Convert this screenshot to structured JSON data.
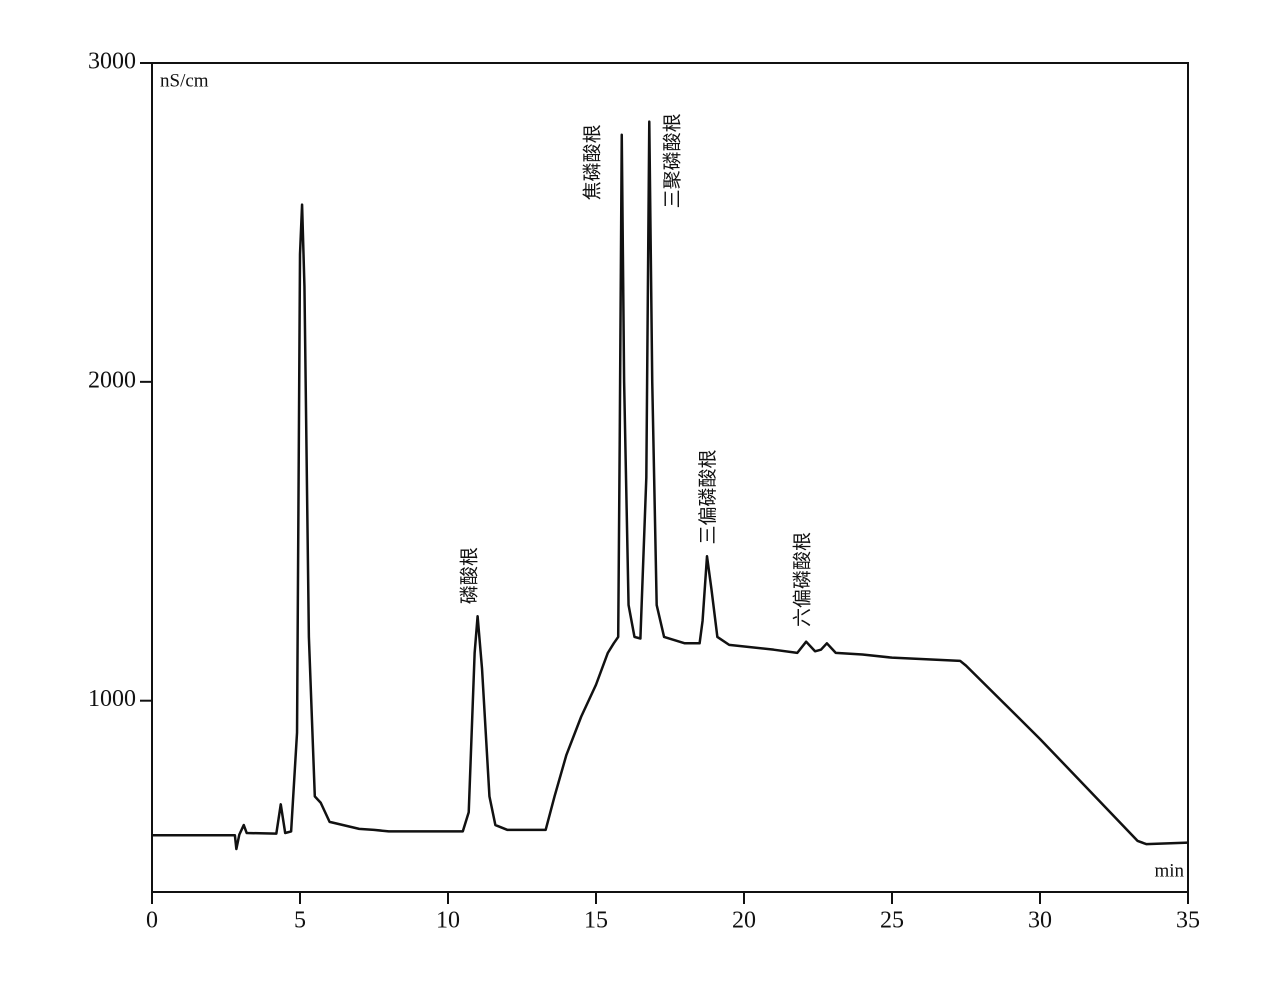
{
  "chart_data": {
    "type": "line",
    "y_label": "nS/cm",
    "x_label": "min",
    "xlim": [
      0,
      35
    ],
    "xticks": [
      0,
      5,
      10,
      15,
      20,
      25,
      30,
      35
    ],
    "ylim": [
      400,
      3000
    ],
    "yticks": [
      1000,
      2000,
      3000
    ],
    "series": [
      {
        "color": "#111111",
        "x": [
          0,
          2.8,
          2.85,
          2.95,
          3.1,
          3.2,
          4.2,
          4.35,
          4.5,
          4.7,
          4.9,
          5.0,
          5.07,
          5.15,
          5.3,
          5.5,
          5.7,
          6,
          7,
          7.5,
          8,
          10.5,
          10.7,
          10.9,
          11.0,
          11.15,
          11.4,
          11.6,
          12,
          13.3,
          13.6,
          14,
          14.5,
          15,
          15.4,
          15.6,
          15.75,
          15.8,
          15.87,
          15.95,
          16.1,
          16.3,
          16.5,
          16.7,
          16.8,
          16.9,
          17.05,
          17.3,
          18,
          18.5,
          18.6,
          18.75,
          18.9,
          19.1,
          19.5,
          21,
          21.8,
          22.1,
          22.4,
          22.6,
          22.8,
          23.1,
          24,
          25,
          27.3,
          27.5,
          30,
          33.3,
          33.6,
          35
        ],
        "values": [
          578,
          578,
          535,
          580,
          610,
          585,
          583,
          675,
          585,
          590,
          900,
          2400,
          2556,
          2300,
          1200,
          700,
          680,
          620,
          598,
          595,
          590,
          590,
          650,
          1150,
          1265,
          1100,
          700,
          610,
          595,
          595,
          700,
          830,
          950,
          1050,
          1150,
          1180,
          1200,
          1800,
          2775,
          2000,
          1300,
          1200,
          1195,
          1700,
          2816,
          2000,
          1300,
          1200,
          1180,
          1180,
          1250,
          1453,
          1350,
          1200,
          1175,
          1160,
          1150,
          1185,
          1155,
          1160,
          1180,
          1150,
          1145,
          1135,
          1125,
          1110,
          880,
          560,
          550,
          555
        ]
      }
    ],
    "annotations": [
      {
        "text": "磷酸根",
        "x": 10.75,
        "y": 1303
      },
      {
        "text": "焦磷酸根",
        "x": 14.9,
        "y": 2569
      },
      {
        "text": "三聚磷酸根",
        "x": 17.6,
        "y": 2544
      },
      {
        "text": "三偏磷酸根",
        "x": 18.8,
        "y": 1490
      },
      {
        "text": "六偏磷酸根",
        "x": 22.0,
        "y": 1231
      }
    ]
  }
}
